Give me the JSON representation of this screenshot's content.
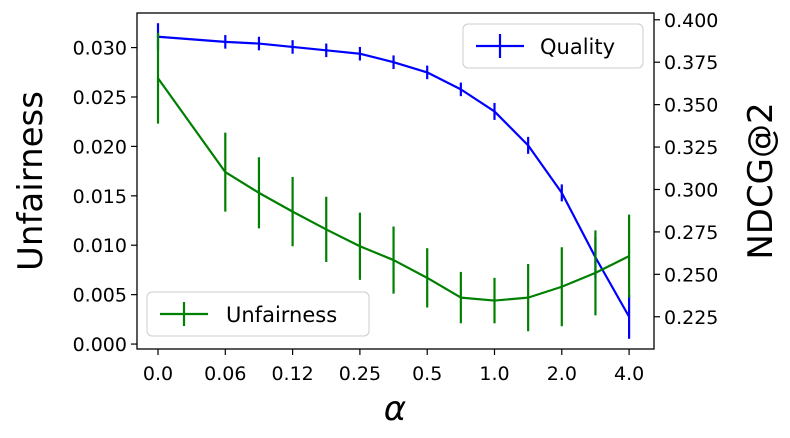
{
  "chart_data": {
    "type": "line",
    "categories": [
      "0.0",
      "0.06",
      "0.12",
      "0.25",
      "0.5",
      "1.0",
      "2.0",
      "4.0"
    ],
    "x": [
      0,
      1,
      2,
      3,
      4,
      5,
      6,
      7,
      8,
      9,
      10,
      11,
      12,
      13,
      14
    ],
    "xlabel": "α",
    "y_left": {
      "label": "Unfairness",
      "lim": [
        -0.0005,
        0.0335
      ],
      "ticks": [
        "0.000",
        "0.005",
        "0.010",
        "0.015",
        "0.020",
        "0.025",
        "0.030"
      ],
      "tick_values": [
        0,
        0.005,
        0.01,
        0.015,
        0.02,
        0.025,
        0.03
      ]
    },
    "y_right": {
      "label": "NDCG@2",
      "lim": [
        0.206,
        0.404
      ],
      "ticks": [
        "0.225",
        "0.250",
        "0.275",
        "0.300",
        "0.325",
        "0.350",
        "0.375",
        "0.400"
      ],
      "tick_values": [
        0.225,
        0.25,
        0.275,
        0.3,
        0.325,
        0.35,
        0.375,
        0.4
      ]
    },
    "series": [
      {
        "name": "Quality",
        "axis": "right",
        "color": "#0000ff",
        "values": [
          0.39,
          0.387,
          0.386,
          0.384,
          0.382,
          0.38,
          0.375,
          0.369,
          0.359,
          0.346,
          0.326,
          0.298,
          0.26,
          0.225
        ],
        "errors": [
          0.008,
          0.004,
          0.004,
          0.004,
          0.004,
          0.004,
          0.004,
          0.004,
          0.004,
          0.005,
          0.005,
          0.005,
          0.012,
          0.013
        ],
        "x": [
          0,
          1,
          1.5,
          2,
          2.5,
          3,
          3.5,
          4,
          4.5,
          5,
          5.5,
          6,
          6.5,
          7
        ]
      },
      {
        "name": "Unfairness",
        "axis": "left",
        "color": "#008000",
        "values": [
          0.0269,
          0.0174,
          0.0153,
          0.0134,
          0.0116,
          0.0099,
          0.0085,
          0.0067,
          0.0047,
          0.0044,
          0.0047,
          0.0058,
          0.0072,
          0.0089
        ],
        "errors": [
          0.0046,
          0.004,
          0.0036,
          0.0035,
          0.0033,
          0.0034,
          0.0034,
          0.003,
          0.0026,
          0.0023,
          0.0034,
          0.004,
          0.0043,
          0.0042
        ],
        "x": [
          0,
          1,
          1.5,
          2,
          2.5,
          3,
          3.5,
          4,
          4.5,
          5,
          5.5,
          6,
          6.5,
          7
        ]
      }
    ],
    "legends": [
      {
        "series": "Quality",
        "placement": "upper-right"
      },
      {
        "series": "Unfairness",
        "placement": "lower-left"
      }
    ],
    "grid": false
  }
}
